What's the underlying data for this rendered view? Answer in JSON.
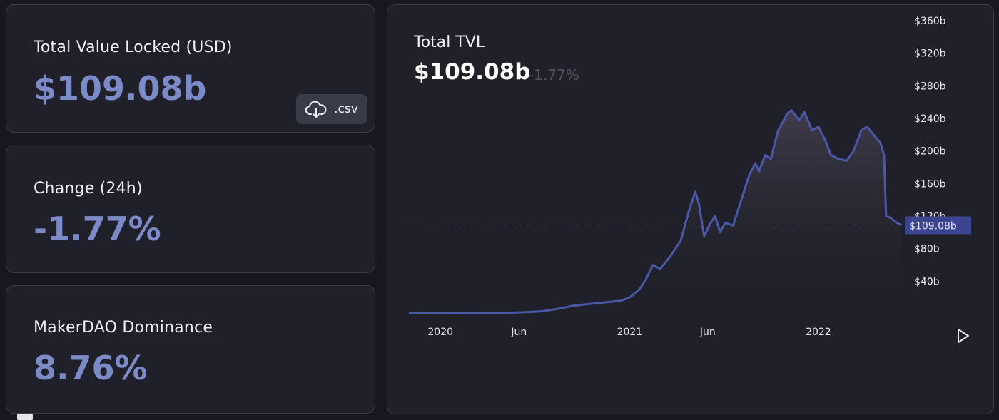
{
  "stats": {
    "tvl_label": "Total Value Locked (USD)",
    "tvl_value": "$109.08b",
    "csv_label": ".csv",
    "change_label": "Change (24h)",
    "change_value": "-1.77%",
    "dominance_label": "MakerDAO Dominance",
    "dominance_value": "8.76%"
  },
  "chart": {
    "title": "Total TVL",
    "value": "$109.08b",
    "change": "-1.77%",
    "current_label": "$109.08b"
  },
  "chart_data": {
    "type": "area",
    "title": "Total TVL",
    "xlabel": "",
    "ylabel": "",
    "x_ticks": [
      "2020",
      "Jun",
      "2021",
      "Jun",
      "2022"
    ],
    "y_ticks": [
      "$40b",
      "$80b",
      "$120b",
      "$160b",
      "$200b",
      "$240b",
      "$280b",
      "$320b",
      "$360b"
    ],
    "ylim": [
      0,
      360
    ],
    "xlim": [
      "2019-11-01",
      "2022-06-13"
    ],
    "unit": "$b",
    "current_value": 109.08,
    "series": [
      {
        "x": [
          "2019-11-01",
          "2020-01-01",
          "2020-03-01",
          "2020-05-01",
          "2020-06-15",
          "2020-07-15",
          "2020-08-15",
          "2020-09-15",
          "2020-10-15",
          "2020-11-15",
          "2020-12-15",
          "2021-01-01",
          "2021-01-20",
          "2021-02-01",
          "2021-02-15",
          "2021-03-01",
          "2021-03-20",
          "2021-04-10",
          "2021-04-25",
          "2021-05-08",
          "2021-05-15",
          "2021-05-25",
          "2021-06-05",
          "2021-06-15",
          "2021-06-25",
          "2021-07-05",
          "2021-07-20",
          "2021-08-05",
          "2021-08-20",
          "2021-09-01",
          "2021-09-08",
          "2021-09-20",
          "2021-10-01",
          "2021-10-15",
          "2021-11-01",
          "2021-11-10",
          "2021-11-25",
          "2021-12-05",
          "2021-12-20",
          "2022-01-01",
          "2022-01-15",
          "2022-01-25",
          "2022-02-10",
          "2022-02-25",
          "2022-03-10",
          "2022-03-25",
          "2022-04-05",
          "2022-04-20",
          "2022-05-01",
          "2022-05-08",
          "2022-05-12",
          "2022-05-20",
          "2022-06-01",
          "2022-06-10"
        ],
        "y": [
          0.5,
          0.6,
          0.8,
          1.0,
          2.0,
          3.0,
          6.0,
          10.0,
          12.0,
          14.0,
          16.0,
          20.0,
          30.0,
          42.0,
          60.0,
          55.0,
          70.0,
          90.0,
          125.0,
          150.0,
          135.0,
          95.0,
          110.0,
          120.0,
          100.0,
          112.0,
          108.0,
          140.0,
          170.0,
          185.0,
          175.0,
          195.0,
          190.0,
          225.0,
          245.0,
          250.0,
          238.0,
          248.0,
          225.0,
          230.0,
          212.0,
          195.0,
          190.0,
          188.0,
          200.0,
          225.0,
          230.0,
          218.0,
          210.0,
          195.0,
          120.0,
          118.0,
          112.0,
          109.08
        ]
      }
    ],
    "grid": false,
    "legend": "none"
  }
}
